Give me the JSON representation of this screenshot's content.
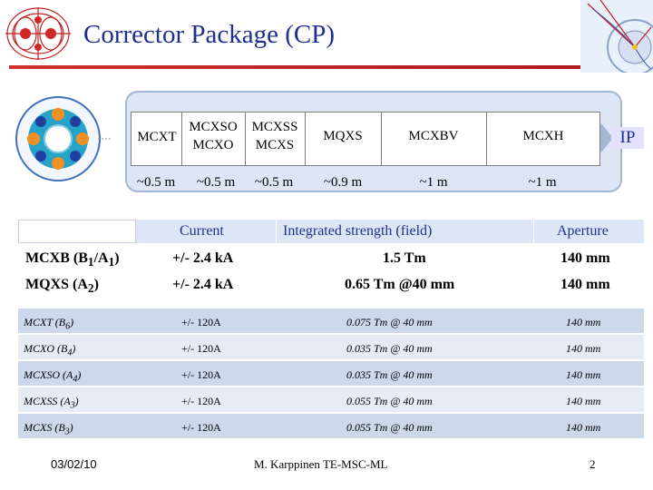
{
  "header": {
    "title": "Corrector Package (CP)"
  },
  "package": {
    "magnets": [
      {
        "label": "MCXT",
        "length": "~0.5 m"
      },
      {
        "label_top": "MCXSO",
        "label_bottom": "MCXO",
        "length": "~0.5 m"
      },
      {
        "label_top": "MCXSS",
        "label_bottom": "MCXS",
        "length": "~0.5 m"
      },
      {
        "label": "MQXS",
        "length": "~0.9 m"
      },
      {
        "label": "MCXBV",
        "length": "~1 m"
      },
      {
        "label": "MCXH",
        "length": "~1 m"
      }
    ],
    "ip_label": "IP"
  },
  "table_main": {
    "headers": [
      "Current",
      "Integrated strength (field)",
      "Aperture"
    ],
    "rows": [
      {
        "name": "MCXB (B",
        "sub1": "1",
        "mid": "/A",
        "sub2": "1",
        "end": ")",
        "current": "+/- 2.4 kA",
        "strength": "1.5 Tm",
        "aperture": "140 mm"
      },
      {
        "name": "MQXS (A",
        "sub1": "2",
        "end": ")",
        "current": "+/- 2.4 kA",
        "strength": "0.65 Tm @40 mm",
        "aperture": "140 mm"
      }
    ]
  },
  "table_correctors": {
    "rows": [
      {
        "name": "MCXT (B",
        "sub": "6",
        "end": ")",
        "current": "+/- 120A",
        "strength": "0.075 Tm @ 40 mm",
        "aperture": "140 mm"
      },
      {
        "name": "MCXO (B",
        "sub": "4",
        "end": ")",
        "current": "+/- 120A",
        "strength": "0.035 Tm @ 40 mm",
        "aperture": "140 mm"
      },
      {
        "name": "MCXSO (A",
        "sub": "4",
        "end": ")",
        "current": "+/- 120A",
        "strength": "0.035 Tm @ 40 mm",
        "aperture": "140 mm"
      },
      {
        "name": "MCXSS (A",
        "sub": "3",
        "end": ")",
        "current": "+/- 120A",
        "strength": "0.055 Tm @ 40 mm",
        "aperture": "140 mm"
      },
      {
        "name": "MCXS (B",
        "sub": "3",
        "end": ")",
        "current": "+/- 120A",
        "strength": "0.055 Tm @ 40 mm",
        "aperture": "140 mm"
      }
    ]
  },
  "footer": {
    "date": "03/02/10",
    "author": "M. Karppinen TE-MSC-ML",
    "page": "2"
  },
  "colors": {
    "title": "#1f2f8f",
    "rule": "#c02020",
    "panel": "#dde6f4",
    "row_dark": "#cdd8ea",
    "row_light": "#e6ecf6"
  }
}
